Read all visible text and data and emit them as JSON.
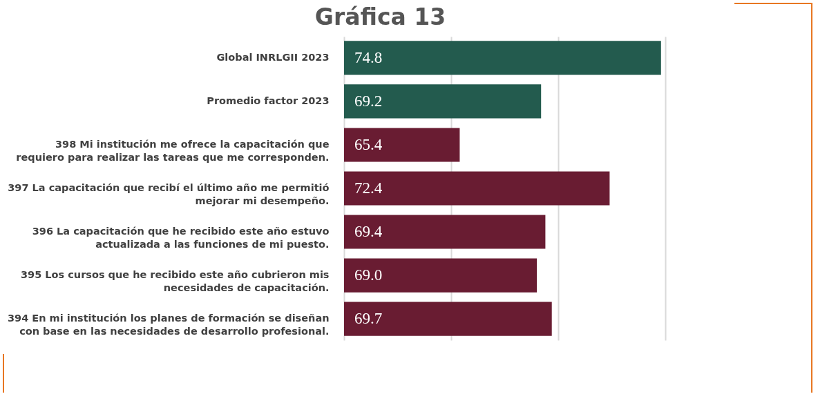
{
  "chart_data": {
    "type": "bar",
    "orientation": "horizontal",
    "title": "Gráfica 13",
    "categories": [
      "Global INRLGII 2023",
      "Promedio factor 2023",
      "398 Mi institución me ofrece la capacitación que requiero para realizar las tareas que me corresponden.",
      "397 La capacitación que recibí el último año me permitió mejorar mi desempeño.",
      "396 La capacitación que he recibido este año estuvo actualizada a las funciones de mi puesto.",
      "395 Los cursos que he recibido este año cubrieron mis necesidades de capacitación.",
      "394 En mi institución los planes de formación se diseñan con base en las necesidades de desarrollo profesional."
    ],
    "values": [
      74.8,
      69.2,
      65.4,
      72.4,
      69.4,
      69.0,
      69.7
    ],
    "value_labels": [
      "74.8",
      "69.2",
      "65.4",
      "72.4",
      "69.4",
      "69.0",
      "69.7"
    ],
    "colors": [
      "#235b4e",
      "#235b4e",
      "#691c32",
      "#691c32",
      "#691c32",
      "#691c32",
      "#691c32"
    ],
    "xlim": [
      60,
      75
    ],
    "xticks": [
      {
        "value": 60,
        "label": null
      },
      {
        "value": 65,
        "label": null
      },
      {
        "value": 70,
        "label": null
      },
      {
        "value": 75,
        "label": null
      }
    ],
    "grid": "x",
    "tick_labels": "y"
  }
}
